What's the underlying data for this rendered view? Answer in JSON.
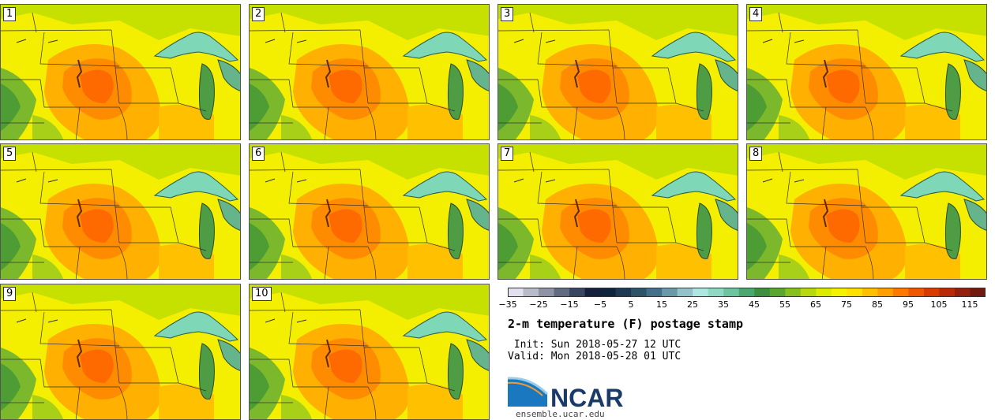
{
  "panels": [
    {
      "label": "1"
    },
    {
      "label": "2"
    },
    {
      "label": "3"
    },
    {
      "label": "4"
    },
    {
      "label": "5"
    },
    {
      "label": "6"
    },
    {
      "label": "7"
    },
    {
      "label": "8"
    },
    {
      "label": "9"
    },
    {
      "label": "10"
    }
  ],
  "legend": {
    "ticks": [
      "−35",
      "−25",
      "−15",
      "−5",
      "5",
      "15",
      "25",
      "35",
      "45",
      "55",
      "65",
      "75",
      "85",
      "95",
      "105",
      "115"
    ],
    "colors": [
      "#e0e0ee",
      "#b8bcc8",
      "#8e94a4",
      "#626c80",
      "#3a4660",
      "#16203a",
      "#10243c",
      "#1e3a52",
      "#2e5468",
      "#46708a",
      "#6a9aa8",
      "#94c2c8",
      "#aee6e2",
      "#8ed8c4",
      "#6ec49e",
      "#4aa870",
      "#3c9040",
      "#5aa630",
      "#88c020",
      "#b8d810",
      "#dcec00",
      "#f4f200",
      "#ffe000",
      "#ffc000",
      "#ffa000",
      "#ff7800",
      "#f05800",
      "#d83c00",
      "#b82a08",
      "#942010",
      "#701a10"
    ]
  },
  "title": "2-m temperature (F) postage stamp",
  "init": " Init: Sun 2018-05-27 12 UTC",
  "valid": "Valid: Mon 2018-05-28 01 UTC",
  "logo": {
    "text": "NCAR",
    "url": "ensemble.ucar.edu"
  }
}
